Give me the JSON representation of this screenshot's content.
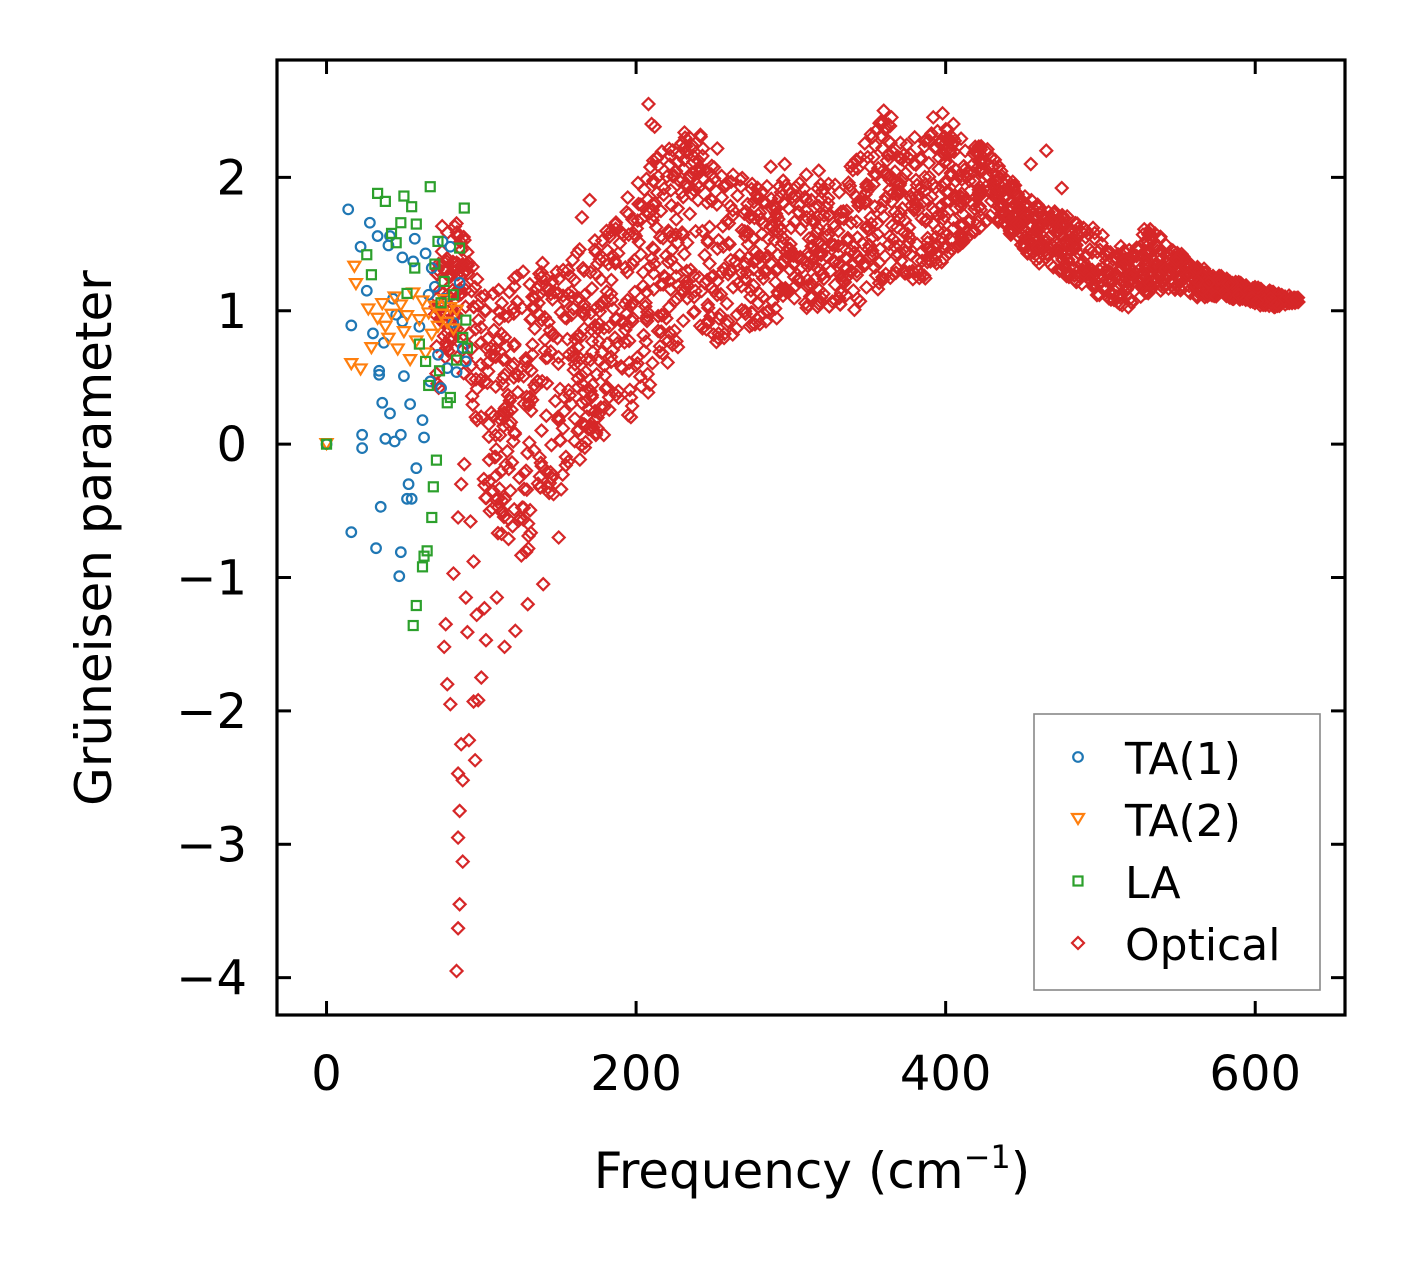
{
  "chart_data": {
    "type": "scatter",
    "title": "",
    "xlabel": "Frequency (cm",
    "xlabel_sup": "−1",
    "xlabel_close": ")",
    "ylabel": "Grüneisen parameter",
    "xlim": [
      -32,
      658
    ],
    "ylim": [
      -4.28,
      2.88
    ],
    "xticks": [
      0,
      200,
      400,
      600
    ],
    "xtick_labels": [
      "0",
      "200",
      "400",
      "600"
    ],
    "yticks": [
      -4,
      -3,
      -2,
      -1,
      0,
      1,
      2
    ],
    "ytick_labels": [
      "−4",
      "−3",
      "−2",
      "−1",
      "0",
      "1",
      "2"
    ],
    "legend_position": "lower-right",
    "grid": false,
    "series": [
      {
        "name": "TA(1)",
        "marker": "circle",
        "color": "#1f77b4",
        "points": [
          [
            0,
            0
          ],
          [
            14,
            1.76
          ],
          [
            16,
            0.89
          ],
          [
            16,
            -0.66
          ],
          [
            22,
            1.48
          ],
          [
            23,
            0.07
          ],
          [
            23,
            -0.03
          ],
          [
            26,
            1.15
          ],
          [
            28,
            1.66
          ],
          [
            30,
            0.83
          ],
          [
            32,
            -0.78
          ],
          [
            33,
            1.56
          ],
          [
            34,
            0.55
          ],
          [
            34,
            0.52
          ],
          [
            35,
            -0.47
          ],
          [
            36,
            0.31
          ],
          [
            37,
            0.76
          ],
          [
            38,
            0.04
          ],
          [
            40,
            1.49
          ],
          [
            41,
            1.56
          ],
          [
            41,
            0.23
          ],
          [
            43,
            1.09
          ],
          [
            44,
            0.02
          ],
          [
            45,
            0.97
          ],
          [
            47,
            -0.99
          ],
          [
            48,
            0.07
          ],
          [
            48,
            -0.81
          ],
          [
            49,
            1.4
          ],
          [
            49,
            0.92
          ],
          [
            50,
            0.51
          ],
          [
            52,
            -0.41
          ],
          [
            53,
            -0.3
          ],
          [
            54,
            0.3
          ],
          [
            55,
            -0.41
          ],
          [
            56,
            1.37
          ],
          [
            57,
            1.54
          ],
          [
            58,
            -0.18
          ],
          [
            60,
            0.88
          ],
          [
            62,
            0.18
          ],
          [
            63,
            0.05
          ],
          [
            64,
            1.43
          ],
          [
            66,
            1.12
          ],
          [
            67,
            0.47
          ],
          [
            68,
            1.32
          ],
          [
            70,
            1.18
          ],
          [
            72,
            0.67
          ],
          [
            74,
            0.42
          ],
          [
            75,
            1.52
          ],
          [
            76,
            1.09
          ],
          [
            78,
            0.57
          ],
          [
            80,
            1.48
          ],
          [
            82,
            0.91
          ],
          [
            84,
            0.54
          ],
          [
            86,
            1.21
          ],
          [
            88,
            0.72
          ],
          [
            90,
            0.62
          ]
        ]
      },
      {
        "name": "TA(2)",
        "marker": "triangle-down",
        "color": "#ff7f0e",
        "points": [
          [
            0,
            0
          ],
          [
            16,
            0.6
          ],
          [
            18,
            1.33
          ],
          [
            19,
            1.2
          ],
          [
            22,
            0.56
          ],
          [
            27,
            1.01
          ],
          [
            29,
            0.72
          ],
          [
            33,
            0.94
          ],
          [
            36,
            1.05
          ],
          [
            38,
            0.88
          ],
          [
            40,
            0.79
          ],
          [
            42,
            0.97
          ],
          [
            44,
            1.1
          ],
          [
            46,
            0.71
          ],
          [
            48,
            1.04
          ],
          [
            50,
            0.84
          ],
          [
            52,
            0.96
          ],
          [
            54,
            0.63
          ],
          [
            56,
            1.13
          ],
          [
            58,
            0.77
          ],
          [
            60,
            0.93
          ],
          [
            62,
            1.07
          ],
          [
            64,
            0.68
          ],
          [
            66,
            0.98
          ],
          [
            68,
            0.82
          ],
          [
            70,
            1.03
          ],
          [
            72,
            0.88
          ],
          [
            74,
            0.97
          ],
          [
            76,
            1.08
          ],
          [
            78,
            0.91
          ],
          [
            80,
            1.02
          ],
          [
            82,
            0.86
          ],
          [
            84,
            1.0
          ]
        ]
      },
      {
        "name": "LA",
        "marker": "square",
        "color": "#2ca02c",
        "points": [
          [
            0,
            0
          ],
          [
            26,
            1.42
          ],
          [
            29,
            1.27
          ],
          [
            33,
            1.88
          ],
          [
            38,
            1.82
          ],
          [
            42,
            1.58
          ],
          [
            45,
            1.51
          ],
          [
            48,
            1.66
          ],
          [
            50,
            1.86
          ],
          [
            52,
            1.13
          ],
          [
            55,
            1.78
          ],
          [
            57,
            1.32
          ],
          [
            58,
            1.65
          ],
          [
            60,
            0.75
          ],
          [
            62,
            -0.92
          ],
          [
            63,
            -0.84
          ],
          [
            64,
            0.62
          ],
          [
            66,
            0.44
          ],
          [
            67,
            1.93
          ],
          [
            68,
            -0.55
          ],
          [
            69,
            -0.32
          ],
          [
            70,
            1.35
          ],
          [
            71,
            -0.12
          ],
          [
            72,
            1.52
          ],
          [
            73,
            0.55
          ],
          [
            74,
            1.06
          ],
          [
            76,
            1.22
          ],
          [
            78,
            0.31
          ],
          [
            80,
            0.35
          ],
          [
            82,
            1.12
          ],
          [
            84,
            0.63
          ],
          [
            86,
            1.47
          ],
          [
            88,
            0.8
          ],
          [
            89,
            1.77
          ],
          [
            90,
            0.93
          ],
          [
            91,
            0.72
          ],
          [
            58,
            -1.21
          ],
          [
            56,
            -1.36
          ],
          [
            65,
            -0.8
          ]
        ]
      },
      {
        "name": "Optical",
        "marker": "diamond",
        "color": "#d62728",
        "density_points": 2200,
        "envelope": [
          [
            70,
            1.75,
            0.3
          ],
          [
            80,
            1.85,
            0.7
          ],
          [
            90,
            1.6,
            0.5
          ],
          [
            95,
            1.3,
            0.2
          ],
          [
            100,
            1.2,
            -0.3
          ],
          [
            110,
            1.2,
            -0.7
          ],
          [
            120,
            1.3,
            -0.9
          ],
          [
            130,
            1.35,
            -0.8
          ],
          [
            140,
            1.4,
            -0.5
          ],
          [
            150,
            1.45,
            -0.4
          ],
          [
            160,
            1.45,
            -0.2
          ],
          [
            170,
            1.5,
            0.0
          ],
          [
            180,
            1.6,
            0.05
          ],
          [
            190,
            1.75,
            0.1
          ],
          [
            200,
            2.0,
            0.25
          ],
          [
            210,
            2.2,
            0.35
          ],
          [
            220,
            2.2,
            0.6
          ],
          [
            230,
            2.35,
            0.7
          ],
          [
            240,
            2.4,
            0.9
          ],
          [
            250,
            2.3,
            0.75
          ],
          [
            260,
            2.1,
            0.8
          ],
          [
            270,
            2.0,
            0.85
          ],
          [
            280,
            1.95,
            0.85
          ],
          [
            290,
            2.0,
            0.9
          ],
          [
            300,
            2.0,
            0.95
          ],
          [
            310,
            1.95,
            1.0
          ],
          [
            320,
            1.95,
            1.0
          ],
          [
            330,
            2.0,
            1.0
          ],
          [
            340,
            2.15,
            1.0
          ],
          [
            350,
            2.3,
            1.05
          ],
          [
            360,
            2.45,
            1.2
          ],
          [
            370,
            2.3,
            1.3
          ],
          [
            380,
            2.2,
            1.2
          ],
          [
            390,
            2.35,
            1.25
          ],
          [
            400,
            2.4,
            1.4
          ],
          [
            410,
            2.3,
            1.5
          ],
          [
            420,
            2.25,
            1.6
          ],
          [
            430,
            2.2,
            1.7
          ],
          [
            440,
            2.0,
            1.6
          ],
          [
            450,
            1.9,
            1.45
          ],
          [
            460,
            1.8,
            1.35
          ],
          [
            470,
            1.75,
            1.3
          ],
          [
            480,
            1.7,
            1.25
          ],
          [
            490,
            1.65,
            1.15
          ],
          [
            500,
            1.6,
            1.1
          ],
          [
            510,
            1.5,
            1.05
          ],
          [
            520,
            1.45,
            1.0
          ],
          [
            530,
            1.65,
            1.1
          ],
          [
            540,
            1.55,
            1.15
          ],
          [
            550,
            1.45,
            1.15
          ],
          [
            560,
            1.35,
            1.1
          ],
          [
            570,
            1.3,
            1.1
          ],
          [
            580,
            1.25,
            1.1
          ],
          [
            590,
            1.22,
            1.08
          ],
          [
            600,
            1.18,
            1.05
          ],
          [
            610,
            1.15,
            1.02
          ],
          [
            620,
            1.12,
            1.05
          ],
          [
            628,
            1.1,
            1.06
          ]
        ],
        "outliers": [
          [
            84,
            -3.95
          ],
          [
            85,
            -3.63
          ],
          [
            86,
            -3.45
          ],
          [
            88,
            -3.13
          ],
          [
            85,
            -2.95
          ],
          [
            86,
            -2.75
          ],
          [
            85,
            -2.47
          ],
          [
            88,
            -2.52
          ],
          [
            87,
            -2.25
          ],
          [
            92,
            -2.22
          ],
          [
            96,
            -2.37
          ],
          [
            98,
            -1.92
          ],
          [
            100,
            -1.75
          ],
          [
            102,
            -1.23
          ],
          [
            103,
            -1.47
          ],
          [
            97,
            -1.28
          ],
          [
            95,
            -1.93
          ],
          [
            80,
            -1.95
          ],
          [
            78,
            -1.8
          ],
          [
            76,
            -1.52
          ],
          [
            77,
            -1.35
          ],
          [
            90,
            -1.15
          ],
          [
            91,
            -1.41
          ],
          [
            82,
            -0.97
          ],
          [
            85,
            -0.55
          ],
          [
            87,
            -0.3
          ],
          [
            89,
            -0.15
          ],
          [
            93,
            -0.58
          ],
          [
            95,
            -0.88
          ],
          [
            110,
            -1.15
          ],
          [
            115,
            -1.52
          ],
          [
            122,
            -1.4
          ],
          [
            130,
            -1.2
          ],
          [
            140,
            -1.05
          ],
          [
            150,
            -0.7
          ],
          [
            208,
            2.55
          ],
          [
            210,
            2.4
          ],
          [
            212,
            2.38
          ],
          [
            170,
            1.83
          ],
          [
            165,
            1.7
          ],
          [
            345,
            2.15
          ],
          [
            360,
            2.5
          ],
          [
            365,
            2.45
          ],
          [
            398,
            2.48
          ],
          [
            405,
            2.4
          ],
          [
            287,
            2.08
          ],
          [
            296,
            2.1
          ],
          [
            318,
            2.05
          ],
          [
            435,
            2.0
          ],
          [
            455,
            2.1
          ],
          [
            465,
            2.2
          ],
          [
            475,
            1.92
          ],
          [
            272,
            1.8
          ],
          [
            275,
            1.95
          ],
          [
            300,
            1.88
          ],
          [
            310,
            2.02
          ],
          [
            340,
            2.1
          ],
          [
            380,
            2.3
          ],
          [
            392,
            2.45
          ],
          [
            420,
            2.2
          ]
        ]
      }
    ]
  }
}
